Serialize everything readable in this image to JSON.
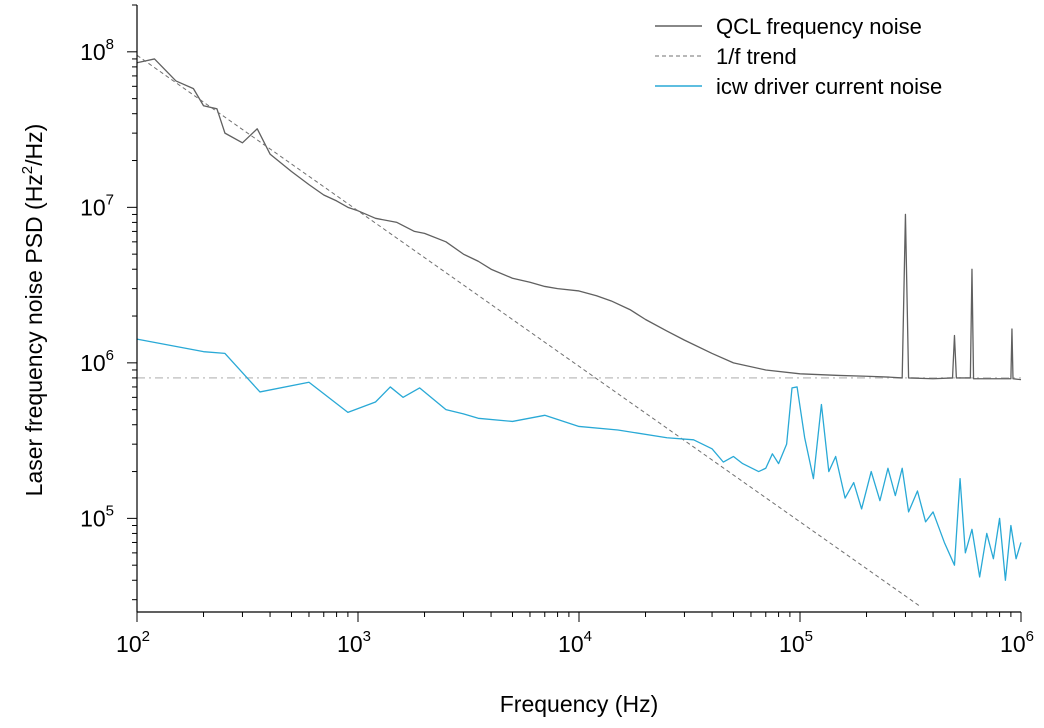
{
  "chart_data": {
    "type": "line",
    "title": "",
    "xlabel": "Frequency (Hz)",
    "ylabel_parts": [
      "Laser frequency noise PSD (Hz",
      "2",
      "/Hz)"
    ],
    "x_scale": "log",
    "y_scale": "log",
    "xlim": [
      100,
      1000000
    ],
    "ylim": [
      25000,
      200000000
    ],
    "x_ticks": [
      {
        "base": "10",
        "exp": "2",
        "value": 100
      },
      {
        "base": "10",
        "exp": "3",
        "value": 1000
      },
      {
        "base": "10",
        "exp": "4",
        "value": 10000
      },
      {
        "base": "10",
        "exp": "5",
        "value": 100000
      },
      {
        "base": "10",
        "exp": "6",
        "value": 1000000
      }
    ],
    "y_ticks": [
      {
        "base": "10",
        "exp": "5",
        "value": 100000
      },
      {
        "base": "10",
        "exp": "6",
        "value": 1000000
      },
      {
        "base": "10",
        "exp": "7",
        "value": 10000000
      },
      {
        "base": "10",
        "exp": "8",
        "value": 100000000
      }
    ],
    "grid": false,
    "legend_position": "top-right",
    "reference_line": {
      "y": 800000,
      "style": "dash-dot",
      "color": "#c8c8c8"
    },
    "series": [
      {
        "name": "QCL frequency noise",
        "color": "#606060",
        "style": "solid",
        "points": [
          [
            100,
            85000000
          ],
          [
            120,
            90000000
          ],
          [
            150,
            65000000
          ],
          [
            180,
            58000000
          ],
          [
            200,
            45000000
          ],
          [
            230,
            43000000
          ],
          [
            250,
            30000000
          ],
          [
            300,
            26000000
          ],
          [
            350,
            32000000
          ],
          [
            400,
            22000000
          ],
          [
            500,
            17000000
          ],
          [
            600,
            14000000
          ],
          [
            700,
            12000000
          ],
          [
            800,
            11000000
          ],
          [
            900,
            10000000
          ],
          [
            1000,
            9500000
          ],
          [
            1200,
            8500000
          ],
          [
            1500,
            8000000
          ],
          [
            1800,
            7000000
          ],
          [
            2000,
            6800000
          ],
          [
            2500,
            6000000
          ],
          [
            3000,
            5000000
          ],
          [
            3500,
            4500000
          ],
          [
            4000,
            4000000
          ],
          [
            5000,
            3500000
          ],
          [
            6000,
            3300000
          ],
          [
            7000,
            3100000
          ],
          [
            8000,
            3000000
          ],
          [
            10000,
            2900000
          ],
          [
            12000,
            2700000
          ],
          [
            14000,
            2500000
          ],
          [
            17000,
            2200000
          ],
          [
            20000,
            1900000
          ],
          [
            25000,
            1600000
          ],
          [
            30000,
            1400000
          ],
          [
            40000,
            1150000
          ],
          [
            50000,
            1000000
          ],
          [
            70000,
            900000
          ],
          [
            100000,
            850000
          ],
          [
            150000,
            830000
          ],
          [
            200000,
            820000
          ],
          [
            250000,
            810000
          ],
          [
            290000,
            800000
          ],
          [
            300000,
            9000000
          ],
          [
            310000,
            800000
          ],
          [
            400000,
            790000
          ],
          [
            490000,
            800000
          ],
          [
            500000,
            1500000
          ],
          [
            510000,
            800000
          ],
          [
            590000,
            800000
          ],
          [
            600000,
            4000000
          ],
          [
            610000,
            790000
          ],
          [
            800000,
            790000
          ],
          [
            900000,
            790000
          ],
          [
            910000,
            1650000
          ],
          [
            920000,
            790000
          ],
          [
            1000000,
            780000
          ]
        ]
      },
      {
        "name": "1/f trend",
        "color": "#707070",
        "style": "dashed",
        "points": [
          [
            100,
            95000000
          ],
          [
            350000,
            27142.857
          ]
        ]
      },
      {
        "name": "icw driver current noise",
        "color": "#29a9d6",
        "style": "solid",
        "points": [
          [
            100,
            1420000
          ],
          [
            200,
            1180000
          ],
          [
            250,
            1150000
          ],
          [
            360,
            650000
          ],
          [
            600,
            750000
          ],
          [
            900,
            480000
          ],
          [
            1200,
            560000
          ],
          [
            1400,
            700000
          ],
          [
            1600,
            600000
          ],
          [
            1900,
            690000
          ],
          [
            2500,
            500000
          ],
          [
            3000,
            470000
          ],
          [
            3500,
            440000
          ],
          [
            5000,
            420000
          ],
          [
            7000,
            460000
          ],
          [
            10000,
            390000
          ],
          [
            15000,
            370000
          ],
          [
            25000,
            330000
          ],
          [
            33000,
            320000
          ],
          [
            40000,
            280000
          ],
          [
            45000,
            230000
          ],
          [
            50000,
            250000
          ],
          [
            55000,
            225000
          ],
          [
            65000,
            200000
          ],
          [
            70000,
            210000
          ],
          [
            75000,
            260000
          ],
          [
            80000,
            225000
          ],
          [
            87000,
            300000
          ],
          [
            92000,
            690000
          ],
          [
            97000,
            700000
          ],
          [
            105000,
            330000
          ],
          [
            115000,
            180000
          ],
          [
            125000,
            540000
          ],
          [
            135000,
            200000
          ],
          [
            145000,
            250000
          ],
          [
            160000,
            135000
          ],
          [
            175000,
            170000
          ],
          [
            190000,
            115000
          ],
          [
            210000,
            200000
          ],
          [
            230000,
            130000
          ],
          [
            250000,
            210000
          ],
          [
            270000,
            140000
          ],
          [
            290000,
            210000
          ],
          [
            310000,
            110000
          ],
          [
            340000,
            150000
          ],
          [
            370000,
            95000
          ],
          [
            400000,
            110000
          ],
          [
            450000,
            70000
          ],
          [
            500000,
            50000
          ],
          [
            530000,
            180000
          ],
          [
            560000,
            60000
          ],
          [
            600000,
            85000
          ],
          [
            650000,
            42000
          ],
          [
            700000,
            80000
          ],
          [
            750000,
            55000
          ],
          [
            800000,
            100000
          ],
          [
            850000,
            40000
          ],
          [
            900000,
            90000
          ],
          [
            950000,
            55000
          ],
          [
            1000000,
            70000
          ]
        ]
      }
    ]
  }
}
